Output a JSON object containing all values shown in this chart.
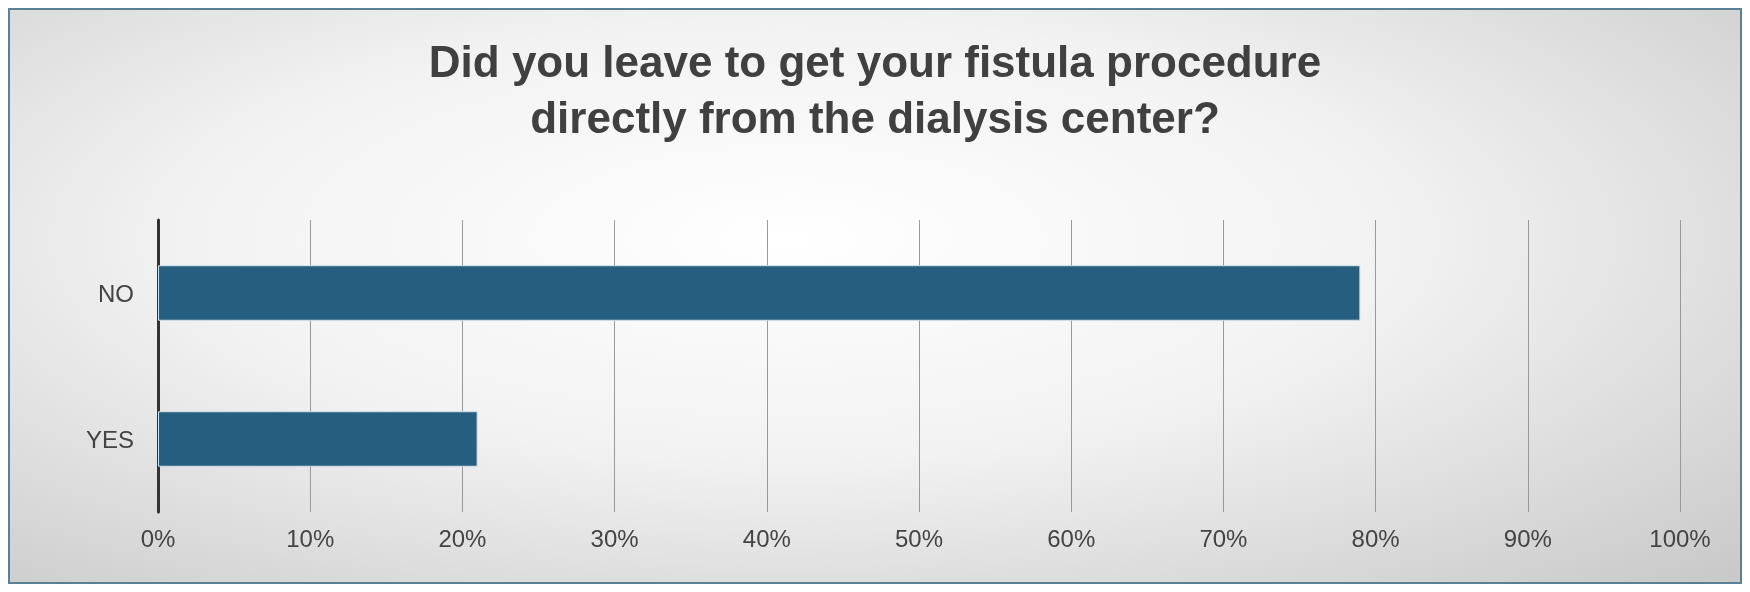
{
  "chart_data": {
    "type": "bar",
    "orientation": "horizontal",
    "title": "Did you leave to get your fistula procedure\ndirectly from the dialysis center?",
    "categories": [
      "NO",
      "YES"
    ],
    "series": [
      {
        "color": "#255e7e",
        "values": [
          79,
          21
        ]
      }
    ],
    "xlim": [
      0,
      100
    ],
    "xticks": [
      {
        "value": 0,
        "label": "0%"
      },
      {
        "value": 10,
        "label": "10%"
      },
      {
        "value": 20,
        "label": "20%"
      },
      {
        "value": 30,
        "label": "30%"
      },
      {
        "value": 40,
        "label": "40%"
      },
      {
        "value": 50,
        "label": "50%"
      },
      {
        "value": 60,
        "label": "60%"
      },
      {
        "value": 70,
        "label": "70%"
      },
      {
        "value": 80,
        "label": "80%"
      },
      {
        "value": 90,
        "label": "90%"
      },
      {
        "value": 100,
        "label": "100%"
      }
    ],
    "grid": "x"
  }
}
